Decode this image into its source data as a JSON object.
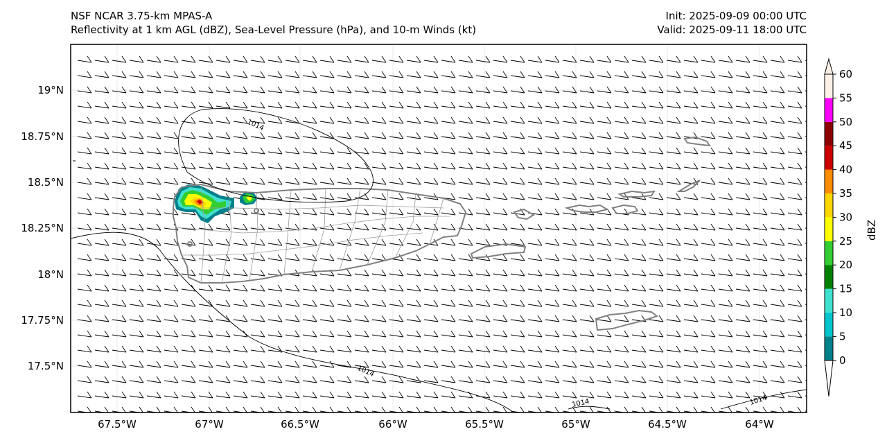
{
  "header": {
    "model": "NSF NCAR 3.75-km MPAS-A",
    "fields": "Reflectivity at 1 km AGL (dBZ), Sea-Level Pressure (hPa), and 10-m Winds (kt)",
    "init": "Init: 2025-09-09 00:00 UTC",
    "valid": "Valid: 2025-09-11 18:00 UTC"
  },
  "map": {
    "lon_range": [
      -67.8,
      -63.75
    ],
    "lat_range": [
      17.25,
      19.25
    ],
    "lon_ticks": [
      "67.5°W",
      "67°W",
      "66.5°W",
      "66°W",
      "65.5°W",
      "65°W",
      "64.5°W",
      "64°W"
    ],
    "lat_ticks": [
      "19°N",
      "18.75°N",
      "18.5°N",
      "18.25°N",
      "18°N",
      "17.75°N",
      "17.5°N"
    ],
    "isobar_labels": [
      "1014",
      "1014",
      "1014",
      "1014"
    ],
    "wind": {
      "direction": "easterly",
      "speed_kt": 10
    },
    "coast_color": "#808080",
    "grid_color": "#e4e8ec"
  },
  "colorbar": {
    "label": "dBZ",
    "levels": [
      "0",
      "5",
      "10",
      "15",
      "20",
      "25",
      "30",
      "35",
      "40",
      "45",
      "50",
      "55",
      "60"
    ],
    "colors": [
      "#00808b",
      "#00c5cd",
      "#40e0d0",
      "#008000",
      "#32cd32",
      "#ffff00",
      "#ffd700",
      "#ff8c00",
      "#cd0000",
      "#8b0000",
      "#ff00ff",
      "#fff0e8"
    ]
  }
}
